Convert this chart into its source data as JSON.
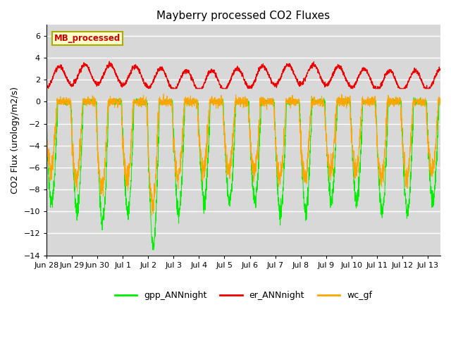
{
  "title": "Mayberry processed CO2 Fluxes",
  "ylabel": "CO2 Flux (urology/m2/s)",
  "ylim": [
    -14,
    7
  ],
  "yticks": [
    -14,
    -12,
    -10,
    -8,
    -6,
    -4,
    -2,
    0,
    2,
    4,
    6
  ],
  "background_color": "#d8d8d8",
  "legend_label": "MB_processed",
  "legend_text_color": "#cc0000",
  "legend_box_color": "#ffffcc",
  "legend_box_edge": "#aaaa00",
  "line_colors": {
    "gpp": "#00ee00",
    "er": "#ee0000",
    "wc": "#ffa500"
  },
  "line_labels": [
    "gpp_ANNnight",
    "er_ANNnight",
    "wc_gf"
  ],
  "n_days": 15.5,
  "n_points": 3000,
  "tick_labels": [
    "Jun 28",
    "Jun 29",
    "Jun 30",
    "Jul 1",
    "Jul 2",
    "Jul 3",
    "Jul 4",
    "Jul 5",
    "Jul 6",
    "Jul 7",
    "Jul 8",
    "Jul 9",
    "Jul 10",
    "Jul 11",
    "Jul 12",
    "Jul 13"
  ],
  "seed": 42
}
